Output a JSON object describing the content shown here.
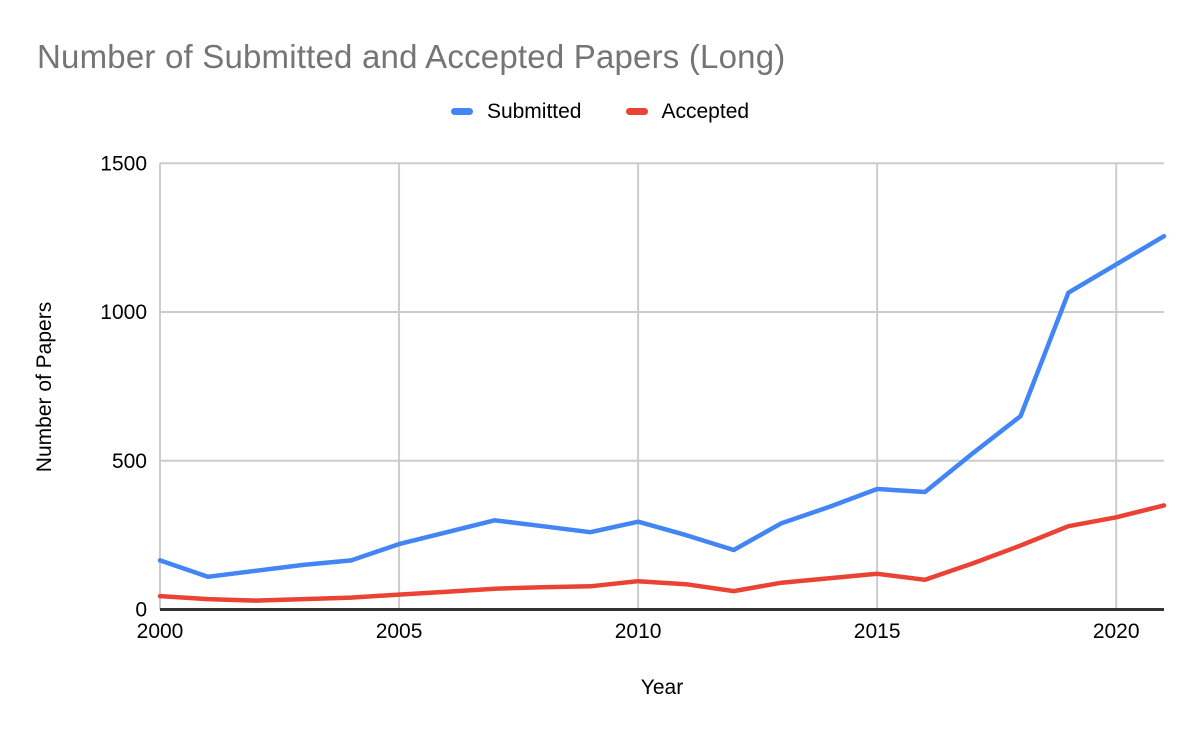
{
  "chart_data": {
    "type": "line",
    "title": "Number of Submitted and Accepted Papers (Long)",
    "xlabel": "Year",
    "ylabel": "Number of Papers",
    "x": [
      2000,
      2001,
      2002,
      2003,
      2004,
      2005,
      2006,
      2007,
      2008,
      2009,
      2010,
      2011,
      2012,
      2013,
      2014,
      2015,
      2016,
      2017,
      2018,
      2019,
      2020,
      2021
    ],
    "series": [
      {
        "name": "Submitted",
        "color": "#4285f4",
        "values": [
          165,
          110,
          130,
          150,
          165,
          220,
          260,
          300,
          280,
          260,
          295,
          250,
          200,
          290,
          345,
          405,
          395,
          525,
          650,
          1065,
          1160,
          1255
        ]
      },
      {
        "name": "Accepted",
        "color": "#ea4335",
        "values": [
          45,
          35,
          30,
          35,
          40,
          50,
          60,
          70,
          75,
          78,
          95,
          85,
          62,
          90,
          105,
          120,
          100,
          155,
          215,
          280,
          310,
          350
        ]
      }
    ],
    "x_ticks": [
      2000,
      2005,
      2010,
      2015,
      2020
    ],
    "y_ticks": [
      0,
      500,
      1000,
      1500
    ],
    "xlim": [
      2000,
      2021
    ],
    "ylim": [
      0,
      1500
    ],
    "grid": true,
    "legend_position": "top",
    "title_color": "#757575",
    "axis_color": "#333333",
    "gridline_color": "#cccccc",
    "tick_label_color": "#000000"
  }
}
